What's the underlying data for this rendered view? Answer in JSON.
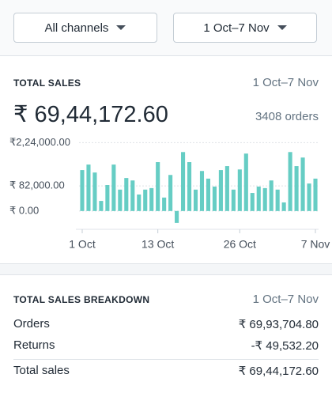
{
  "filters": {
    "channel": "All channels",
    "date_range": "1 Oct–7 Nov"
  },
  "total_sales": {
    "title": "TOTAL SALES",
    "date_range": "1 Oct–7 Nov",
    "amount": "₹ 69,44,172.60",
    "orders": "3408 orders"
  },
  "chart_data": {
    "type": "bar",
    "categories": [
      "1 Oct",
      null,
      null,
      null,
      null,
      null,
      null,
      null,
      null,
      null,
      null,
      null,
      "13 Oct",
      null,
      null,
      null,
      null,
      null,
      null,
      null,
      null,
      null,
      null,
      null,
      null,
      "26 Oct",
      null,
      null,
      null,
      null,
      null,
      null,
      null,
      null,
      null,
      null,
      null,
      "7 Nov"
    ],
    "values": [
      134000,
      152000,
      126000,
      33000,
      85000,
      152000,
      70000,
      108000,
      100000,
      54000,
      70000,
      75000,
      160000,
      44000,
      118000,
      -39000,
      193000,
      160000,
      70000,
      131000,
      106000,
      80000,
      134000,
      147000,
      70000,
      136000,
      188000,
      59000,
      80000,
      75000,
      100000,
      70000,
      28000,
      193000,
      147000,
      175000,
      90000,
      106000
    ],
    "color": "#66cdc4",
    "ylim": [
      -60000,
      230000
    ],
    "yticks": [
      {
        "value": 224000,
        "label": "₹2,24,000.00"
      },
      {
        "value": 82000,
        "label": "₹ 82,000.00"
      },
      {
        "value": 0,
        "label": "₹ 0.00"
      }
    ],
    "grid": true
  },
  "breakdown": {
    "title": "TOTAL SALES BREAKDOWN",
    "date_range": "1 Oct–7 Nov",
    "rows": [
      [
        "Orders",
        "₹ 69,93,704.80"
      ],
      [
        "Returns",
        "-₹ 49,532.20"
      ],
      [
        "Total sales",
        "₹ 69,44,172.60"
      ]
    ]
  }
}
